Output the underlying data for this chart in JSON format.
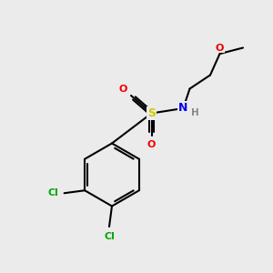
{
  "background_color": "#ebebeb",
  "atom_colors": {
    "C": "#000000",
    "H": "#888888",
    "N": "#0000ee",
    "O": "#ee0000",
    "S": "#cccc00",
    "Cl": "#00aa00"
  },
  "bond_color": "#000000",
  "bond_width": 1.5,
  "fig_size": [
    3.0,
    3.0
  ],
  "dpi": 100,
  "xlim": [
    0,
    10
  ],
  "ylim": [
    0,
    10
  ]
}
